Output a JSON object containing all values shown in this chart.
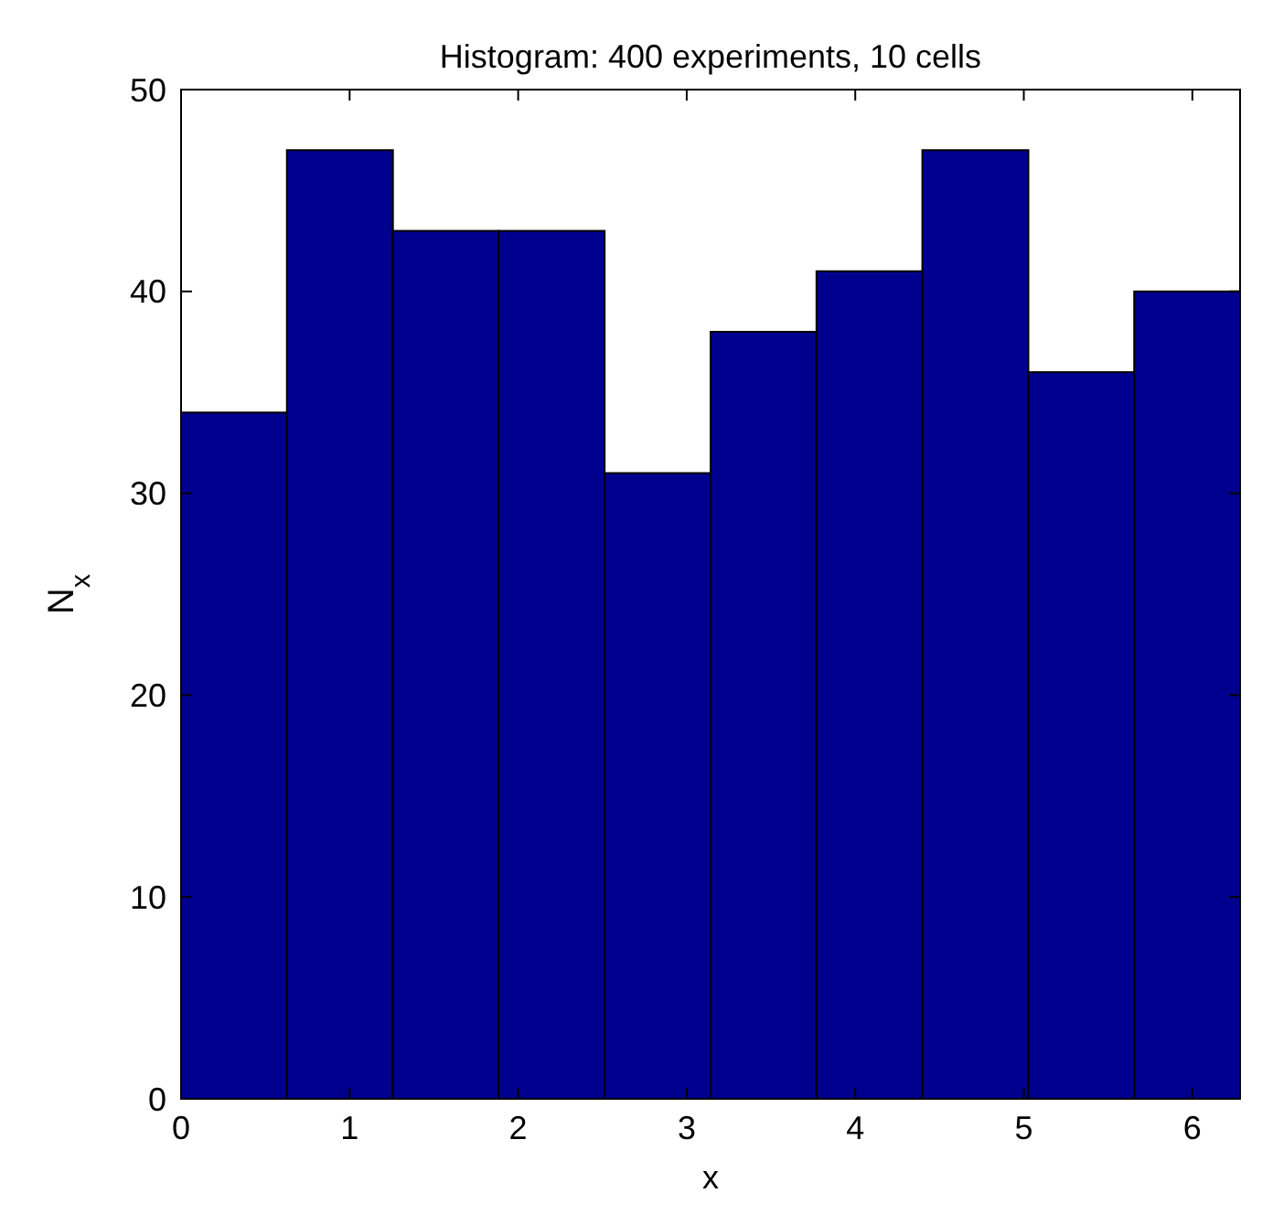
{
  "chart_data": {
    "type": "histogram",
    "title": "Histogram: 400 experiments, 10 cells",
    "xlabel": "x",
    "ylabel": "N$_{x}$",
    "bins": [
      0,
      0.628,
      1.257,
      1.885,
      2.513,
      3.142,
      3.77,
      4.398,
      5.027,
      5.655,
      6.283
    ],
    "values": [
      34,
      47,
      43,
      43,
      31,
      38,
      41,
      47,
      36,
      40
    ],
    "color": "#00008f",
    "xlim": [
      0,
      6.283
    ],
    "xticks": [
      0,
      1,
      2,
      3,
      4,
      5,
      6
    ],
    "ylim": [
      0,
      50
    ],
    "yticks": [
      0,
      10,
      20,
      30,
      40,
      50
    ],
    "grid": false
  }
}
